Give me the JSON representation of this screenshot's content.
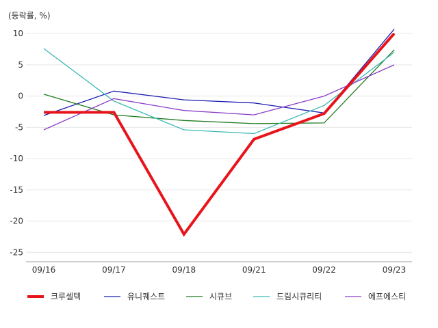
{
  "chart_data": {
    "type": "line",
    "unit_label": "(등락률, %)",
    "x": [
      "09/16",
      "09/17",
      "09/18",
      "09/21",
      "09/22",
      "09/23"
    ],
    "ylim": [
      -26.5,
      11
    ],
    "yticks": [
      10,
      5,
      0,
      -5,
      -10,
      -15,
      -20,
      -25
    ],
    "grid": true,
    "legend_position": "bottom",
    "series": [
      {
        "name": "크루셀텍",
        "color": "#e8141b",
        "values": [
          -2.6,
          -2.6,
          -22.1,
          -6.9,
          -2.8,
          10.0
        ],
        "emphasis": true
      },
      {
        "name": "유니퀘스트",
        "color": "#1a1ab0",
        "values": [
          -3.1,
          0.8,
          -0.6,
          -1.1,
          -2.7,
          10.7
        ]
      },
      {
        "name": "시큐브",
        "color": "#1e7a1e",
        "values": [
          0.3,
          -3.0,
          -3.9,
          -4.4,
          -4.3,
          7.4
        ]
      },
      {
        "name": "드림시큐리티",
        "color": "#3ab7b7",
        "values": [
          7.6,
          -0.8,
          -5.4,
          -6.0,
          -1.5,
          7.0
        ]
      },
      {
        "name": "에프에스티",
        "color": "#8a3cc8",
        "values": [
          -5.4,
          -0.4,
          -2.3,
          -3.0,
          0.0,
          5.0
        ]
      }
    ]
  }
}
